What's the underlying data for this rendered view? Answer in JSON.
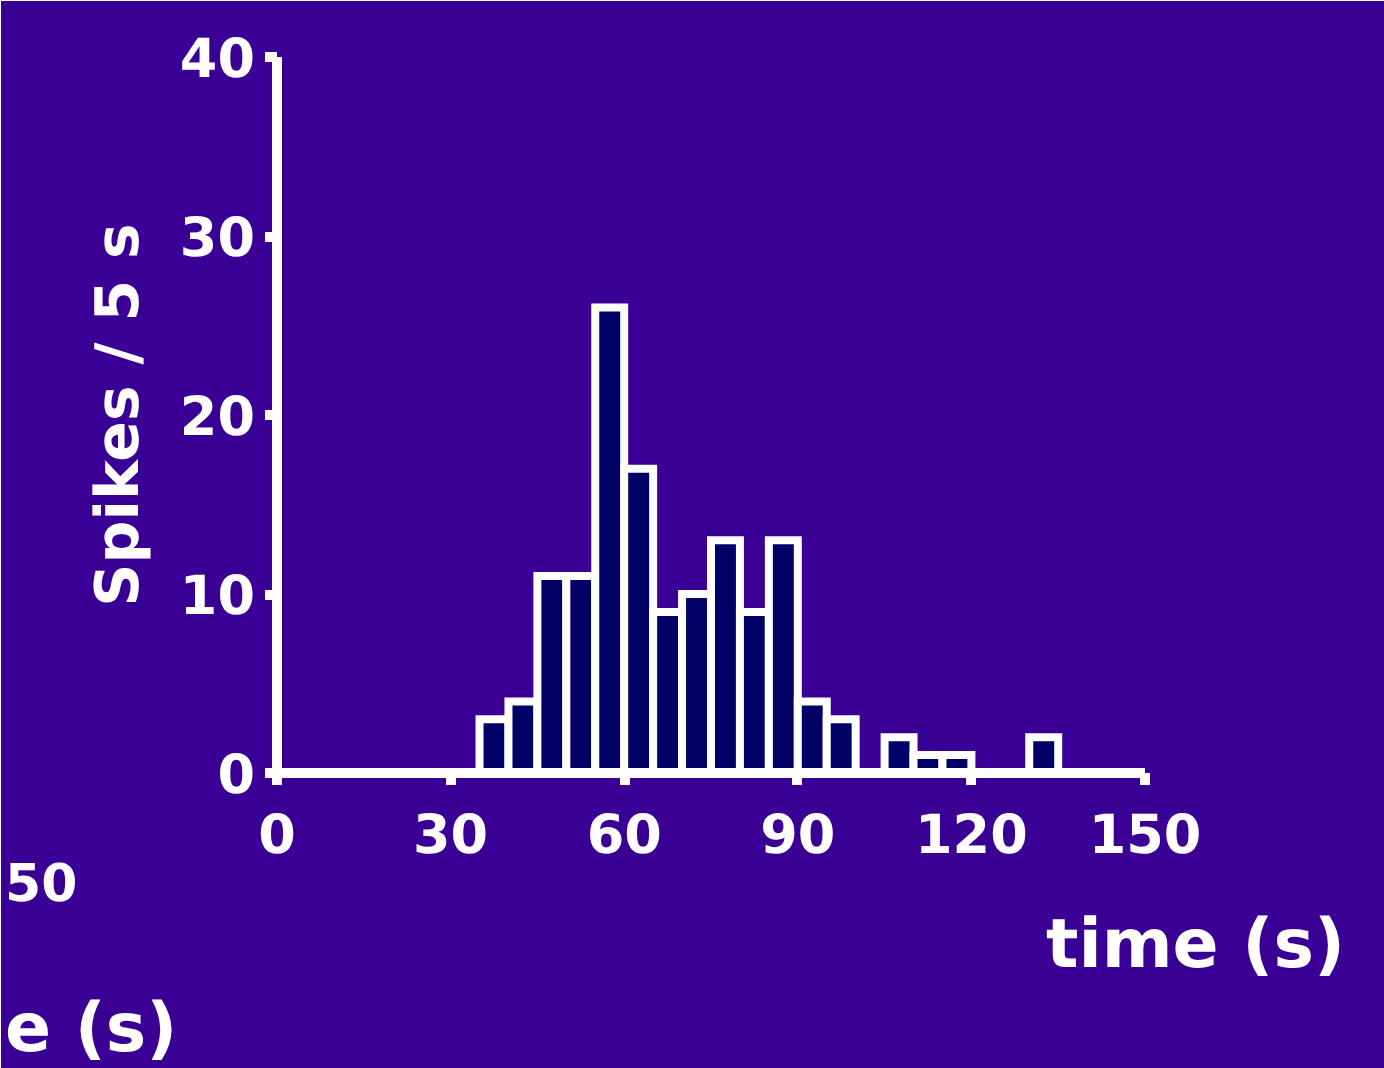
{
  "chart_data": {
    "type": "histogram",
    "xlabel": "time (s)",
    "ylabel": "Spikes / 5 s",
    "bins": [
      35,
      40,
      45,
      50,
      55,
      60,
      65,
      70,
      75,
      80,
      85,
      90,
      95,
      100,
      105,
      110,
      115,
      120,
      125,
      130,
      135
    ],
    "values": [
      3,
      4,
      11,
      11,
      26,
      17,
      9,
      10,
      13,
      9,
      13,
      4,
      3,
      0,
      2,
      1,
      1,
      0,
      0,
      2
    ],
    "color": "#000066",
    "xlim": [
      0,
      150
    ],
    "xticks": [
      0,
      30,
      60,
      90,
      120,
      150
    ],
    "ylim": [
      0,
      40
    ],
    "yticks": [
      0,
      10,
      20,
      30,
      40
    ],
    "grid": false,
    "annotations": [
      "50",
      "e (s)"
    ]
  }
}
